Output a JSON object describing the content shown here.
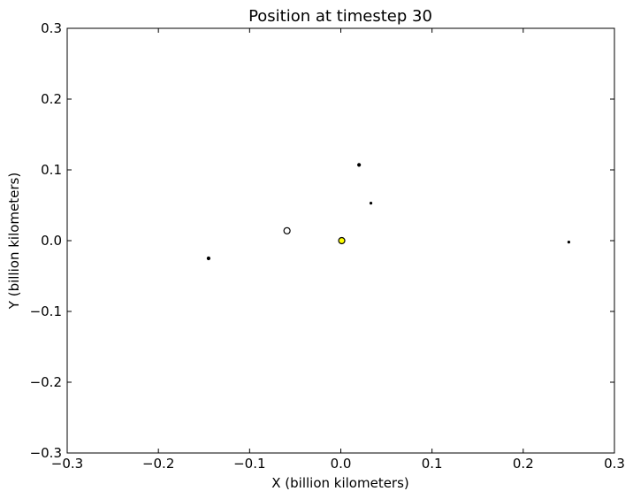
{
  "chart_data": {
    "type": "scatter",
    "title": "Position at timestep 30",
    "xlabel": "X (billion kilometers)",
    "ylabel": "Y (billion kilometers)",
    "xlim": [
      -0.3,
      0.3
    ],
    "ylim": [
      -0.3,
      0.3
    ],
    "xticks": [
      -0.3,
      -0.2,
      -0.1,
      0.0,
      0.1,
      0.2,
      0.3
    ],
    "yticks": [
      -0.3,
      -0.2,
      -0.1,
      0.0,
      0.1,
      0.2,
      0.3
    ],
    "xtick_labels": [
      "−0.3",
      "−0.2",
      "−0.1",
      "0.0",
      "0.1",
      "0.2",
      "0.3"
    ],
    "ytick_labels": [
      "−0.3",
      "−0.2",
      "−0.1",
      "0.0",
      "0.1",
      "0.2",
      "0.3"
    ],
    "grid": false,
    "points": [
      {
        "x": 0.001,
        "y": 0.0,
        "size": "medium",
        "fill": "#ffff00",
        "stroke": "#000000"
      },
      {
        "x": -0.059,
        "y": 0.014,
        "size": "medium",
        "fill": "#ffffff",
        "stroke": "#000000"
      },
      {
        "x": 0.02,
        "y": 0.107,
        "size": "small",
        "fill": "#000000",
        "stroke": "#000000"
      },
      {
        "x": 0.033,
        "y": 0.053,
        "size": "tiny",
        "fill": "#000000",
        "stroke": "#000000"
      },
      {
        "x": -0.145,
        "y": -0.025,
        "size": "small",
        "fill": "#000000",
        "stroke": "#000000"
      },
      {
        "x": 0.25,
        "y": -0.002,
        "size": "tiny",
        "fill": "#000000",
        "stroke": "#000000"
      }
    ]
  }
}
